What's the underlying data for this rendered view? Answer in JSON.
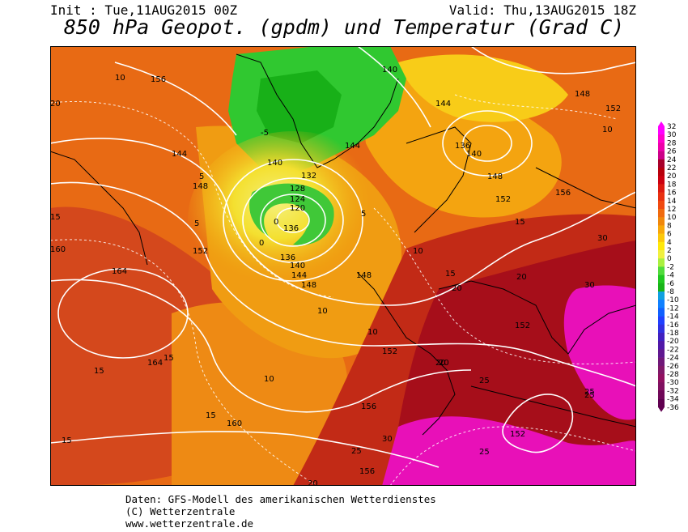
{
  "header": {
    "init": "Init : Tue,11AUG2015 00Z",
    "valid": "Valid: Thu,13AUG2015 18Z",
    "title": "850 hPa Geopot. (gpdm) und Temperatur (Grad C)"
  },
  "footer": {
    "line1": "Daten: GFS-Modell des amerikanischen Wetterdienstes",
    "line2": "(C) Wetterzentrale",
    "line3": "www.wetterzentrale.de"
  },
  "colorbar": {
    "labels": [
      "32",
      "30",
      "28",
      "26",
      "24",
      "22",
      "20",
      "18",
      "16",
      "14",
      "12",
      "10",
      "8",
      "6",
      "4",
      "2",
      "0",
      "-2",
      "-4",
      "-6",
      "-8",
      "-10",
      "-12",
      "-14",
      "-16",
      "-18",
      "-20",
      "-22",
      "-24",
      "-26",
      "-28",
      "-30",
      "-32",
      "-34",
      "-36"
    ],
    "colors": [
      "#ff00ff",
      "#ff00cc",
      "#ee00aa",
      "#cc0088",
      "#a8002a",
      "#b8000c",
      "#cc0010",
      "#dd1a10",
      "#e83010",
      "#f04a10",
      "#f06a0e",
      "#f0880c",
      "#f8a80a",
      "#fcc80a",
      "#ffe80a",
      "#f0f040",
      "#aaf040",
      "#50dc3c",
      "#20c820",
      "#18b418",
      "#10a0e0",
      "#1080ff",
      "#1060ff",
      "#2040ff",
      "#3030e0",
      "#4020c0",
      "#5018a8",
      "#601890",
      "#701878",
      "#801868",
      "#901060",
      "#801060",
      "#700858",
      "#600050"
    ]
  },
  "map": {
    "geopotential_labels": [
      "136",
      "132",
      "128",
      "124",
      "120",
      "136",
      "140",
      "144",
      "148",
      "152",
      "156",
      "160",
      "164",
      "140",
      "144",
      "148",
      "152",
      "156",
      "136",
      "140",
      "148",
      "152",
      "140",
      "144",
      "148",
      "152",
      "152",
      "156",
      "160",
      "164",
      "144",
      "148",
      "152",
      "156"
    ],
    "temperature_labels": [
      "10",
      "15",
      "20",
      "5",
      "0",
      "-5",
      "10",
      "15",
      "20",
      "25",
      "30",
      "10",
      "15",
      "20",
      "25",
      "5",
      "0",
      "10",
      "15",
      "20",
      "25",
      "30",
      "15",
      "10",
      "5",
      "20",
      "25",
      "30",
      "15",
      "10",
      "15",
      "20",
      "25"
    ]
  }
}
